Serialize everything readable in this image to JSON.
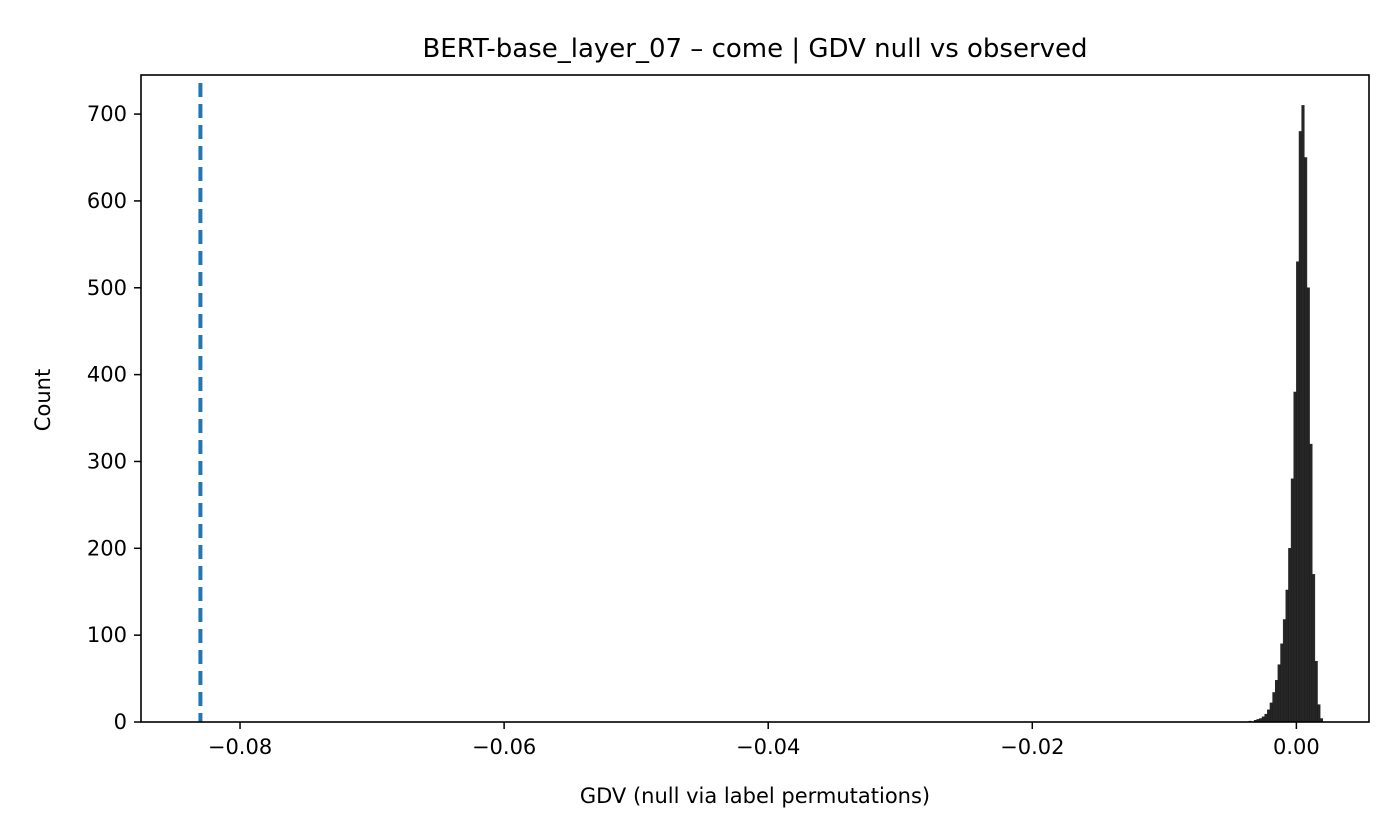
{
  "chart_data": {
    "type": "bar",
    "title": "BERT-base_layer_07 – come | GDV null vs observed",
    "xlabel": "GDV (null via label permutations)",
    "ylabel": "Count",
    "xlim": [
      -0.0875,
      0.0055
    ],
    "ylim": [
      0,
      745
    ],
    "x_ticks": [
      -0.08,
      -0.06,
      -0.04,
      -0.02,
      0.0
    ],
    "x_tick_labels": [
      "−0.08",
      "−0.06",
      "−0.04",
      "−0.02",
      "0.00"
    ],
    "y_ticks": [
      0,
      100,
      200,
      300,
      400,
      500,
      600,
      700
    ],
    "y_tick_labels": [
      "0",
      "100",
      "200",
      "300",
      "400",
      "500",
      "600",
      "700"
    ],
    "grid": false,
    "bar_color": "#000000",
    "observed_color": "#1f77b4",
    "observed_gdv": -0.083,
    "bin_width": 0.0002,
    "bins": [
      {
        "x": -0.0036,
        "count": 1
      },
      {
        "x": -0.0032,
        "count": 2
      },
      {
        "x": -0.003,
        "count": 3
      },
      {
        "x": -0.0028,
        "count": 4
      },
      {
        "x": -0.0026,
        "count": 6
      },
      {
        "x": -0.0024,
        "count": 9
      },
      {
        "x": -0.0022,
        "count": 14
      },
      {
        "x": -0.002,
        "count": 22
      },
      {
        "x": -0.0018,
        "count": 34
      },
      {
        "x": -0.0016,
        "count": 48
      },
      {
        "x": -0.0014,
        "count": 66
      },
      {
        "x": -0.0012,
        "count": 90
      },
      {
        "x": -0.001,
        "count": 118
      },
      {
        "x": -0.0008,
        "count": 152
      },
      {
        "x": -0.0006,
        "count": 200
      },
      {
        "x": -0.0004,
        "count": 280
      },
      {
        "x": -0.0002,
        "count": 380
      },
      {
        "x": 0.0,
        "count": 530
      },
      {
        "x": 0.0002,
        "count": 680
      },
      {
        "x": 0.0004,
        "count": 710
      },
      {
        "x": 0.0006,
        "count": 650
      },
      {
        "x": 0.0008,
        "count": 500
      },
      {
        "x": 0.001,
        "count": 320
      },
      {
        "x": 0.0012,
        "count": 170
      },
      {
        "x": 0.0014,
        "count": 70
      },
      {
        "x": 0.0016,
        "count": 20
      },
      {
        "x": 0.0018,
        "count": 4
      }
    ]
  }
}
